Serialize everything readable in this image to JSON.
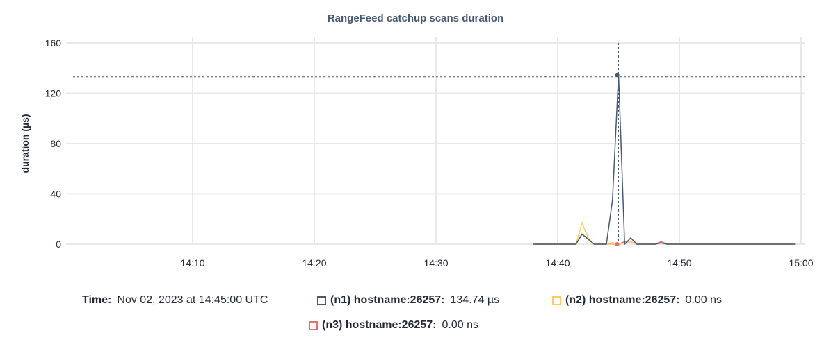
{
  "chart_data": {
    "type": "line",
    "title": "RangeFeed catchup scans duration",
    "ylabel": "duration (µs)",
    "xlabel": "",
    "ylim": [
      0,
      160
    ],
    "yticks": [
      0,
      40,
      80,
      120,
      160
    ],
    "xlim": [
      "14:00",
      "15:00"
    ],
    "xticks": [
      "14:10",
      "14:20",
      "14:30",
      "14:40",
      "14:50",
      "15:00"
    ],
    "grid": true,
    "x": [
      "14:38:00",
      "14:38:30",
      "14:39:00",
      "14:39:30",
      "14:40:00",
      "14:40:30",
      "14:41:00",
      "14:41:30",
      "14:42:00",
      "14:42:30",
      "14:43:00",
      "14:43:30",
      "14:44:00",
      "14:44:30",
      "14:45:00",
      "14:45:30",
      "14:46:00",
      "14:46:30",
      "14:47:00",
      "14:47:30",
      "14:48:00",
      "14:48:30",
      "14:49:00",
      "14:49:30",
      "14:50:00",
      "14:50:30",
      "14:51:00",
      "14:51:30",
      "14:52:00",
      "14:52:30",
      "14:53:00",
      "14:53:30",
      "14:54:00",
      "14:54:30",
      "14:55:00",
      "14:55:30",
      "14:56:00",
      "14:56:30",
      "14:57:00",
      "14:57:30",
      "14:58:00",
      "14:58:30",
      "14:59:00",
      "14:59:30"
    ],
    "series": [
      {
        "name": "(n1) hostname:26257",
        "color": "#475872",
        "values": [
          0,
          0,
          0,
          0,
          0,
          0,
          0,
          0,
          8,
          4,
          0,
          0,
          0,
          35,
          134.74,
          0,
          5,
          0,
          0,
          0,
          0,
          1,
          0,
          0,
          0,
          0,
          0,
          0,
          0,
          0,
          0,
          0,
          0,
          0,
          0,
          0,
          0,
          0,
          0,
          0,
          0,
          0,
          0,
          0
        ]
      },
      {
        "name": "(n2) hostname:26257",
        "color": "#ffcd5c",
        "values": [
          0,
          0,
          0,
          0,
          0,
          0,
          0,
          0,
          17,
          5,
          0,
          0,
          0,
          0,
          0,
          1,
          2,
          0,
          0,
          0,
          0,
          1,
          0,
          0,
          0,
          0,
          0,
          0,
          0,
          0,
          0,
          0,
          0,
          0,
          0,
          0,
          0,
          0,
          0,
          0,
          0,
          0,
          0,
          0
        ]
      },
      {
        "name": "(n3) hostname:26257",
        "color": "#f16969",
        "values": [
          0,
          0,
          0,
          0,
          0,
          0,
          0,
          0,
          8,
          4,
          0,
          0,
          0,
          1,
          0,
          2,
          2,
          0,
          0,
          0,
          0,
          2,
          0,
          0,
          0,
          0,
          0,
          0,
          0,
          0,
          0,
          0,
          0,
          0,
          0,
          0,
          0,
          0,
          0,
          0,
          0,
          0,
          0,
          0
        ]
      }
    ],
    "hover": {
      "x": "14:45:00",
      "value": 134.74
    }
  },
  "legend": {
    "time_label": "Time:",
    "time_value": "Nov 02, 2023 at 14:45:00 UTC",
    "items": [
      {
        "label": "(n1) hostname:26257:",
        "value": "134.74 µs"
      },
      {
        "label": "(n2) hostname:26257:",
        "value": "0.00 ns"
      },
      {
        "label": "(n3) hostname:26257:",
        "value": "0.00 ns"
      }
    ]
  }
}
